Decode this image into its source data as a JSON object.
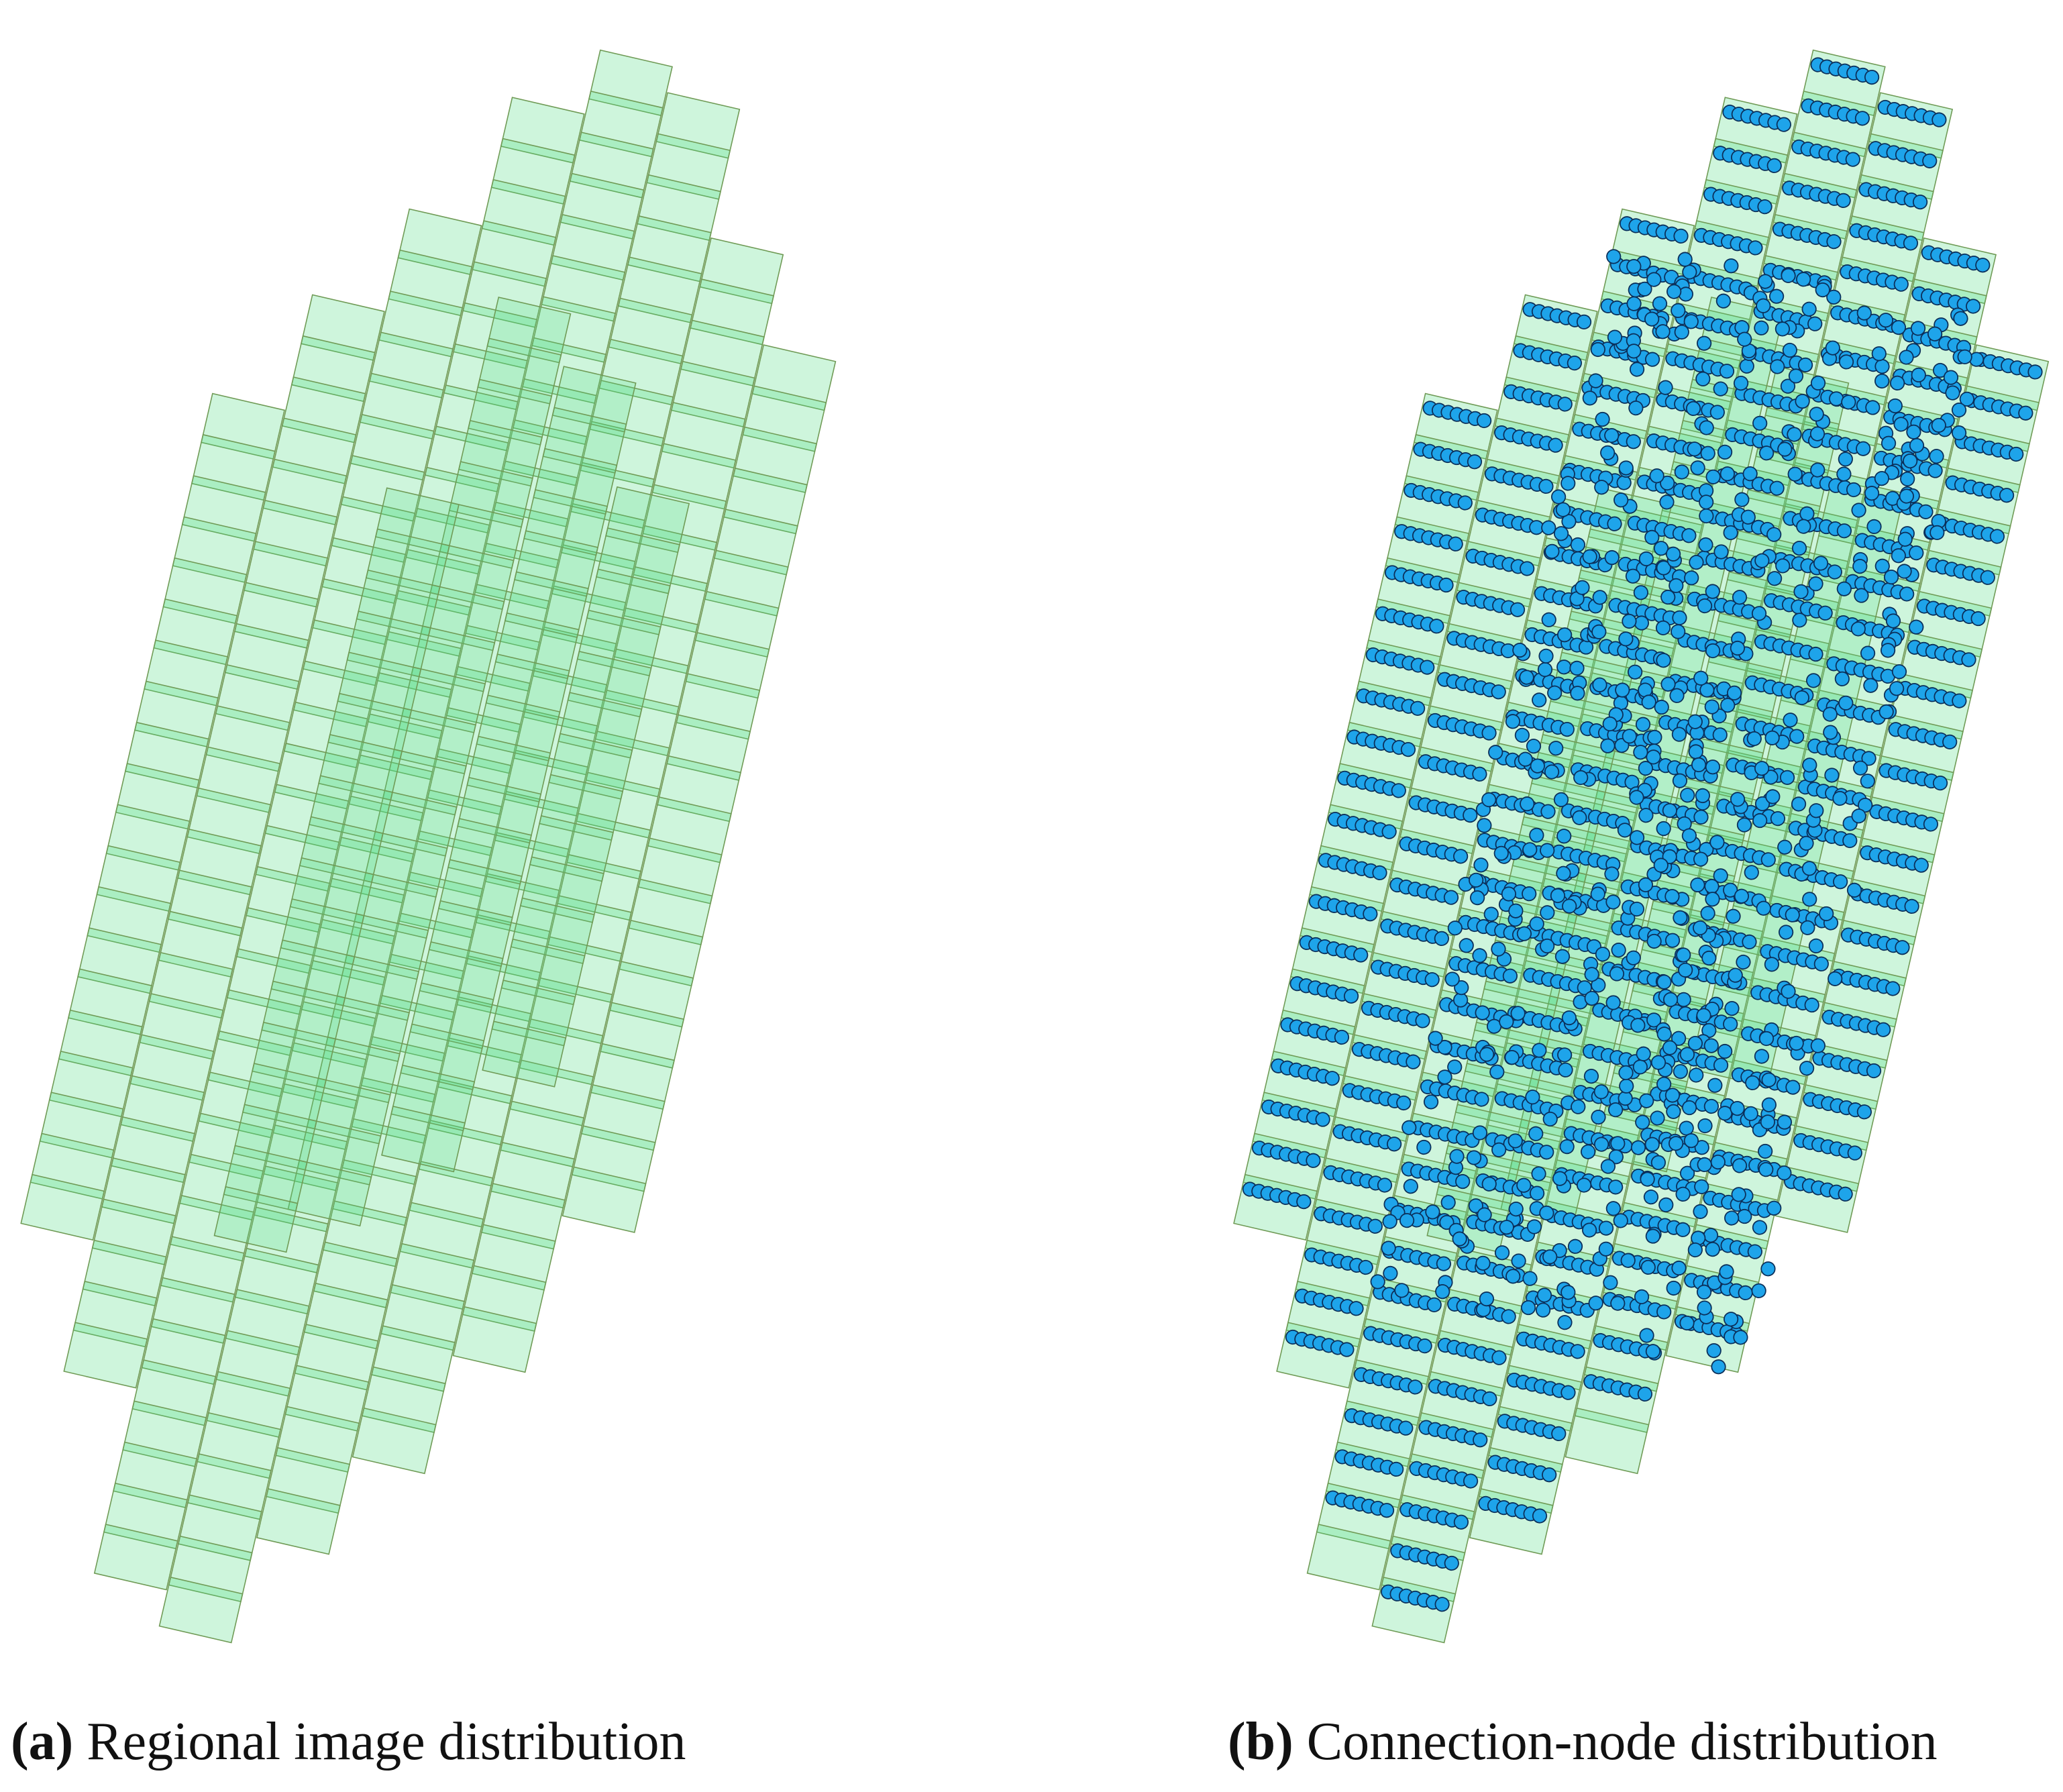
{
  "panels": [
    {
      "label": "(a)",
      "caption": "Regional image distribution"
    },
    {
      "label": "(b)",
      "caption": "Connection-node distribution"
    }
  ]
}
